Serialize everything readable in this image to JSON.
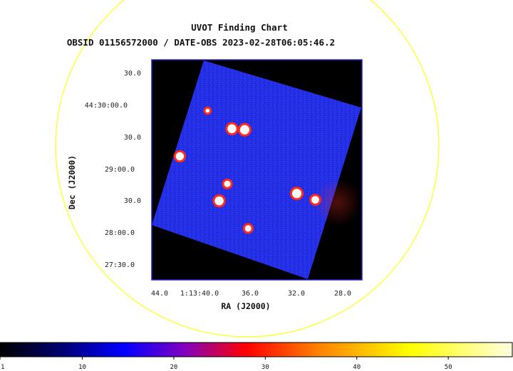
{
  "chart_data": {
    "type": "heatmap",
    "title": "UVOT Finding Chart",
    "subtitle": "OBSID 01156572000 / DATE-OBS 2023-02-28T06:05:46.2",
    "xlabel": "RA (J2000)",
    "ylabel": "Dec (J2000)",
    "ra_ticks": [
      "44.0",
      "1:13:40.0",
      "36.0",
      "32.0",
      "28.0"
    ],
    "dec_ticks": [
      "30.0",
      "44:30:00.0",
      "30.0",
      "29:00.0",
      "30.0",
      "28:00.0",
      "27:30.0"
    ],
    "colorbar": {
      "range": [
        1,
        57
      ],
      "ticks": [
        1,
        10,
        20,
        30,
        40,
        50
      ],
      "tick_labels": [
        "1",
        "10",
        "20",
        "30",
        "40",
        "50"
      ]
    },
    "sources": [
      {
        "ra": "1:13:37.2",
        "dec": "44:29:38",
        "brightness": 55
      },
      {
        "ra": "1:13:36.1",
        "dec": "44:29:37",
        "brightness": 57
      },
      {
        "ra": "1:13:41.7",
        "dec": "44:29:12",
        "brightness": 52
      },
      {
        "ra": "1:13:37.6",
        "dec": "44:28:46",
        "brightness": 45
      },
      {
        "ra": "1:13:38.3",
        "dec": "44:28:30",
        "brightness": 55
      },
      {
        "ra": "1:13:31.6",
        "dec": "44:28:37",
        "brightness": 57
      },
      {
        "ra": "1:13:30.0",
        "dec": "44:28:31",
        "brightness": 50
      },
      {
        "ra": "1:13:35.8",
        "dec": "44:28:04",
        "brightness": 45
      },
      {
        "ra": "1:13:39.3",
        "dec": "44:29:55",
        "brightness": 35
      }
    ],
    "colors": {
      "background": "#000000",
      "sky": "#2230e8",
      "circle": "#ffff33",
      "frame": "#2020c0"
    }
  }
}
